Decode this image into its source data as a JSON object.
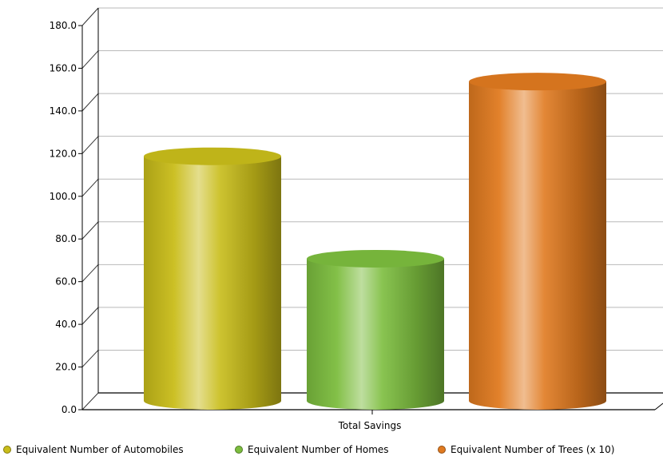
{
  "chart_data": {
    "type": "bar",
    "categories": [
      "Total Savings"
    ],
    "series": [
      {
        "name": "Equivalent Number of Automobiles",
        "values": [
          115
        ],
        "color": "#c9bd1a"
      },
      {
        "name": "Equivalent Number of Homes",
        "values": [
          67
        ],
        "color": "#7cbd3e"
      },
      {
        "name": "Equivalent Number of Trees (x 10)",
        "values": [
          150
        ],
        "color": "#e07a20"
      }
    ],
    "ylim": [
      0,
      180
    ],
    "yticks": [
      "0.0",
      "20.0",
      "40.0",
      "60.0",
      "80.0",
      "100.0",
      "120.0",
      "140.0",
      "160.0",
      "180.0"
    ],
    "grid": true,
    "legend_position": "bottom",
    "bar_style": "3d-cylinder"
  }
}
